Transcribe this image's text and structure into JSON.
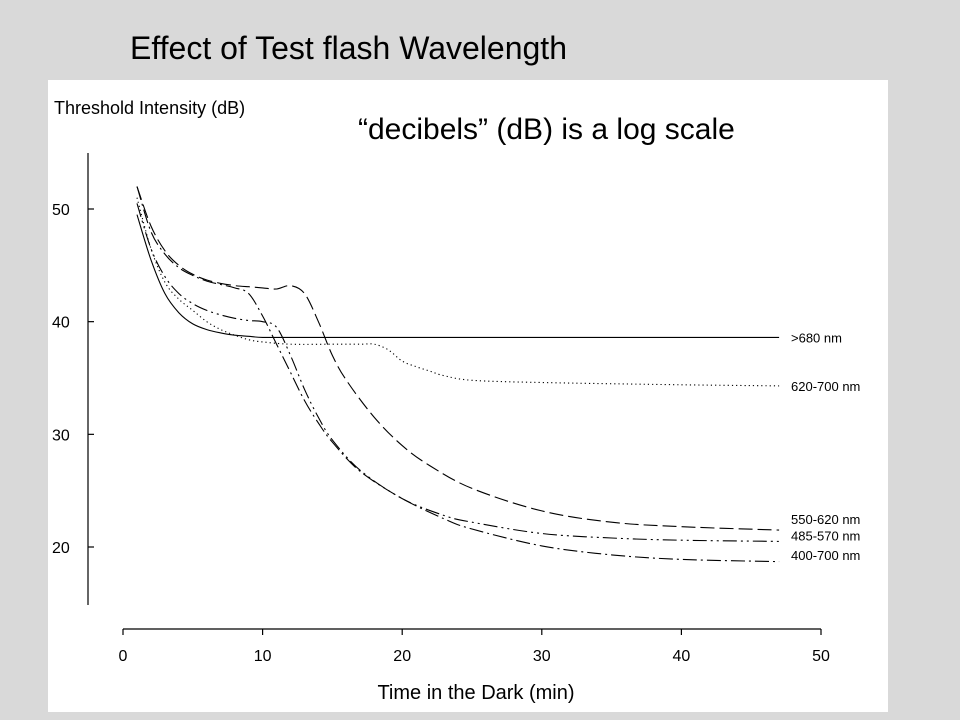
{
  "slide": {
    "title": "Effect of Test flash Wavelength",
    "note": "“decibels”  (dB) is a log scale"
  },
  "chart_data": {
    "type": "line",
    "title": "",
    "xlabel": "Time in the Dark (min)",
    "ylabel": "Threshold Intensity (dB)",
    "xlim": [
      0,
      50
    ],
    "ylim": [
      15,
      55
    ],
    "x_ticks": [
      0,
      10,
      20,
      30,
      40,
      50
    ],
    "y_ticks": [
      20,
      30,
      40,
      50
    ],
    "series": [
      {
        "name": ">680 nm",
        "style": "solid",
        "x": [
          1,
          2,
          3,
          4,
          5,
          6,
          7,
          8,
          9,
          10,
          12,
          15,
          20,
          30,
          40,
          47
        ],
        "y": [
          49.5,
          45.5,
          42.5,
          40.8,
          39.8,
          39.3,
          39.0,
          38.8,
          38.7,
          38.6,
          38.6,
          38.6,
          38.6,
          38.6,
          38.6,
          38.6
        ]
      },
      {
        "name": "620-700 nm",
        "style": "dotted",
        "x": [
          1,
          2,
          3,
          4,
          5,
          6,
          7,
          8,
          9,
          10,
          12,
          15,
          17,
          18,
          19,
          20,
          21,
          22,
          23,
          25,
          30,
          40,
          47
        ],
        "y": [
          51,
          46.5,
          43.5,
          42,
          41,
          40,
          39.3,
          38.8,
          38.4,
          38.2,
          38.0,
          38.0,
          38.0,
          38.0,
          37.5,
          36.5,
          36.0,
          35.6,
          35.2,
          34.8,
          34.6,
          34.4,
          34.3
        ]
      },
      {
        "name": "550-620 nm",
        "style": "long-dash",
        "x": [
          1,
          2,
          3,
          4,
          5,
          6,
          7,
          8,
          9,
          10,
          11,
          12,
          13,
          14,
          15,
          16,
          18,
          20,
          22,
          25,
          30,
          35,
          40,
          47
        ],
        "y": [
          52,
          48.5,
          46.3,
          45,
          44.2,
          43.7,
          43.4,
          43.2,
          43.1,
          43,
          42.9,
          43.2,
          42.5,
          40,
          37,
          34.8,
          31.5,
          29,
          27.2,
          25.2,
          23.2,
          22.2,
          21.8,
          21.5
        ]
      },
      {
        "name": "485-570 nm",
        "style": "dash-dot-dot",
        "x": [
          1,
          2,
          3,
          4,
          5,
          6,
          7,
          8,
          9,
          10,
          11,
          12,
          13,
          14,
          15,
          17,
          20,
          23,
          25,
          30,
          35,
          40,
          47
        ],
        "y": [
          50.5,
          46.5,
          44,
          42.5,
          41.6,
          41,
          40.6,
          40.3,
          40.1,
          40,
          39.5,
          37,
          34,
          31.5,
          29.5,
          26.8,
          24.3,
          22.8,
          22.2,
          21.2,
          20.8,
          20.6,
          20.5
        ]
      },
      {
        "name": "400-700 nm",
        "style": "dash-dot",
        "x": [
          1,
          2,
          3,
          4,
          5,
          6,
          7,
          8,
          9,
          10,
          11,
          12,
          13,
          14,
          15,
          17,
          20,
          23,
          25,
          30,
          35,
          40,
          47
        ],
        "y": [
          52,
          48,
          46,
          44.8,
          44.1,
          43.6,
          43.3,
          43,
          42.5,
          40.5,
          38,
          35.5,
          33,
          31,
          29.3,
          26.7,
          24.3,
          22.5,
          21.6,
          20.1,
          19.3,
          18.9,
          18.7
        ]
      }
    ]
  }
}
